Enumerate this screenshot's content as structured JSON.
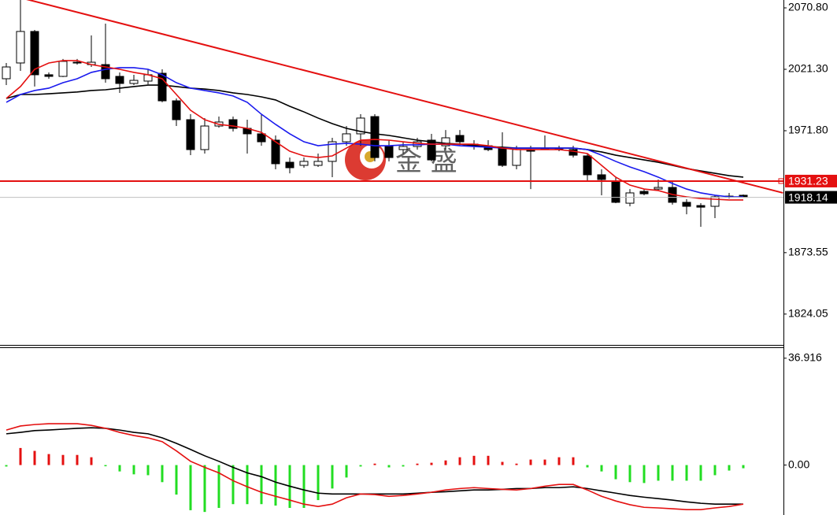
{
  "chart_data": [
    {
      "type": "candlestick",
      "ylim": [
        1799.2,
        2077.15
      ],
      "yticks": [
        {
          "value": 2070.8,
          "label": "2070.80"
        },
        {
          "value": 2021.3,
          "label": "2021.30"
        },
        {
          "value": 1971.8,
          "label": "1971.80"
        },
        1873.55,
        1824.05
      ],
      "open": [
        2013.7,
        2026.4,
        2051.8,
        2016.9,
        2015.6,
        2026.4,
        2025.1,
        2025.1,
        2015.6,
        2009.9,
        2011.8,
        2018.1,
        1995.9,
        1980.7,
        1956.6,
        1975.6,
        1980.7,
        1973.7,
        1969.3,
        1964.2,
        1946.4,
        1943.9,
        1943.9,
        1947.1,
        1962.9,
        1969.3,
        1983.2,
        1959.7,
        1956.6,
        1959.1,
        1964.2,
        1959.7,
        1968.0,
        1961.0,
        1959.7,
        1957.8,
        1943.9,
        1956.6,
        1957.8,
        1957.8,
        1956.6,
        1951.5,
        1936.3,
        1931.2,
        1913.4,
        1922.9,
        1924.8,
        1926.1,
        1914.1,
        1911.5,
        1910.9,
        1918.5,
        1919.8
      ],
      "high": [
        2026.4,
        2077.2,
        2053.0,
        2018.8,
        2029.6,
        2029.6,
        2048.6,
        2058.1,
        2018.8,
        2016.9,
        2021.3,
        2021.3,
        1997.8,
        1985.1,
        1982.0,
        1983.2,
        1983.2,
        1980.7,
        1985.1,
        1968.0,
        1950.2,
        1950.2,
        1953.4,
        1966.1,
        1975.6,
        1985.1,
        1985.1,
        1964.2,
        1962.9,
        1966.1,
        1969.3,
        1972.4,
        1972.4,
        1964.2,
        1964.2,
        1970.5,
        1959.7,
        1959.7,
        1968.0,
        1959.7,
        1959.7,
        1953.4,
        1940.7,
        1934.4,
        1924.8,
        1924.8,
        1932.5,
        1931.2,
        1916.6,
        1913.4,
        1919.8,
        1921.7,
        1920.4
      ],
      "low": [
        2008.6,
        2020.0,
        2007.4,
        2013.7,
        2015.0,
        2025.1,
        2023.2,
        2010.5,
        2002.3,
        2008.6,
        2009.2,
        1994.7,
        1975.6,
        1952.1,
        1953.4,
        1974.3,
        1971.2,
        1953.4,
        1959.7,
        1940.7,
        1937.5,
        1942.0,
        1942.6,
        1934.4,
        1959.7,
        1959.7,
        1947.1,
        1947.1,
        1953.4,
        1956.6,
        1947.1,
        1956.6,
        1959.7,
        1956.6,
        1955.3,
        1942.6,
        1940.7,
        1924.8,
        1956.6,
        1955.3,
        1950.2,
        1931.2,
        1919.8,
        1913.4,
        1910.9,
        1919.8,
        1923.6,
        1912.2,
        1904.5,
        1894.4,
        1901.4,
        1917.2,
        1917.9
      ],
      "close": [
        2023.2,
        2051.8,
        2016.9,
        2015.6,
        2027.7,
        2027.0,
        2027.0,
        2013.7,
        2009.9,
        2012.4,
        2016.9,
        1995.9,
        1980.7,
        1956.6,
        1975.6,
        1978.8,
        1973.7,
        1969.3,
        1962.9,
        1945.2,
        1942.0,
        1947.1,
        1947.1,
        1962.9,
        1969.3,
        1982.0,
        1950.2,
        1950.2,
        1959.1,
        1962.9,
        1948.3,
        1966.1,
        1962.9,
        1959.7,
        1956.6,
        1943.9,
        1956.6,
        1955.3,
        1957.2,
        1957.2,
        1952.1,
        1936.3,
        1932.5,
        1914.1,
        1921.7,
        1921.0,
        1926.1,
        1914.1,
        1910.9,
        1910.2,
        1918.5,
        1919.1,
        1918.14
      ],
      "up_color": "#ffffff",
      "down_color": "#000000",
      "lines": [
        {
          "color": "#000000",
          "values": [
            1997.8,
            2001.0,
            2001.0,
            2001.6,
            2002.3,
            2003.0,
            2004.2,
            2004.8,
            2006.1,
            2007.4,
            2008.6,
            2008.6,
            2007.4,
            2006.1,
            2005.4,
            2004.2,
            2002.3,
            2001.0,
            1999.1,
            1996.6,
            1991.5,
            1987.0,
            1982.0,
            1977.5,
            1973.7,
            1971.2,
            1969.3,
            1968.0,
            1966.1,
            1964.2,
            1962.9,
            1961.6,
            1961.0,
            1959.7,
            1959.1,
            1958.5,
            1957.8,
            1957.8,
            1957.8,
            1957.8,
            1957.8,
            1956.6,
            1954.7,
            1952.1,
            1950.2,
            1948.3,
            1946.4,
            1943.9,
            1941.3,
            1939.4,
            1937.5,
            1935.6,
            1934.4
          ]
        },
        {
          "color": "#1a1aee",
          "values": [
            1994.7,
            2001.0,
            2004.2,
            2006.1,
            2010.5,
            2013.7,
            2018.8,
            2021.3,
            2022.6,
            2022.6,
            2021.3,
            2016.9,
            2010.5,
            2006.1,
            2004.2,
            2002.3,
            1999.8,
            1994.7,
            1985.1,
            1976.9,
            1969.3,
            1962.9,
            1959.7,
            1961.0,
            1961.6,
            1961.0,
            1959.7,
            1959.7,
            1960.4,
            1960.4,
            1961.0,
            1961.0,
            1959.7,
            1959.1,
            1958.5,
            1957.8,
            1957.8,
            1957.8,
            1957.8,
            1957.8,
            1957.8,
            1956.6,
            1952.1,
            1947.1,
            1942.6,
            1938.8,
            1934.4,
            1929.3,
            1924.8,
            1921.7,
            1919.8,
            1918.5,
            1918.5
          ]
        },
        {
          "color": "#e41010",
          "values": [
            1997.8,
            2007.4,
            2021.3,
            2026.4,
            2028.3,
            2028.3,
            2025.1,
            2023.2,
            2021.3,
            2018.8,
            2016.9,
            2013.7,
            2001.0,
            1988.3,
            1980.7,
            1976.9,
            1975.6,
            1973.7,
            1970.5,
            1962.9,
            1955.3,
            1951.5,
            1950.2,
            1951.5,
            1957.8,
            1964.2,
            1964.8,
            1964.2,
            1962.9,
            1961.6,
            1961.0,
            1961.0,
            1961.0,
            1961.0,
            1959.7,
            1957.8,
            1956.6,
            1956.6,
            1956.6,
            1956.6,
            1955.3,
            1953.4,
            1943.9,
            1934.4,
            1928.0,
            1924.8,
            1923.6,
            1920.4,
            1918.5,
            1917.2,
            1916.6,
            1916.0,
            1916.0
          ]
        }
      ],
      "trendline": {
        "color": "#e41010",
        "x": [
          1.2,
          54.8
        ],
        "y": [
          2078.4,
          1921.7
        ]
      },
      "levels": [
        {
          "value": 1931.23,
          "color": "#e41010",
          "label_color": "#e41010"
        },
        {
          "value": 1918.14,
          "color": "#c0c0c0",
          "label_color": "#000000"
        }
      ],
      "watermark": "金 盛"
    },
    {
      "type": "macd",
      "ylim": [
        -17.25,
        40.42
      ],
      "yticks": [
        36.916,
        {
          "value": 0,
          "label": "0.00"
        }
      ],
      "up_color": "#e41010",
      "down_color": "#22dd22",
      "values": [
        -0.5,
        5.9,
        4.9,
        3.8,
        3.5,
        3.5,
        2.7,
        -0.3,
        -2.2,
        -3.2,
        -3.5,
        -5.9,
        -10.2,
        -15.6,
        -16.2,
        -14.8,
        -13.5,
        -13.5,
        -13.5,
        -14.0,
        -14.8,
        -14.8,
        -12.1,
        -8.1,
        -4.3,
        -0.5,
        0.5,
        -0.8,
        -0.5,
        0.5,
        0.8,
        1.6,
        2.7,
        3.2,
        3.2,
        1.1,
        0.5,
        1.9,
        1.9,
        2.7,
        2.7,
        -0.8,
        -2.2,
        -4.9,
        -5.9,
        -6.2,
        -5.4,
        -5.4,
        -5.4,
        -5.4,
        -3.5,
        -1.9,
        -1.1
      ],
      "lines": [
        {
          "color": "#000000",
          "values": [
            10.8,
            11.3,
            11.9,
            12.1,
            12.4,
            12.7,
            12.9,
            12.7,
            12.1,
            11.3,
            10.8,
            9.4,
            7.5,
            5.4,
            3.2,
            1.3,
            -0.8,
            -2.7,
            -4.0,
            -5.9,
            -7.3,
            -8.6,
            -9.7,
            -10.0,
            -10.0,
            -10.0,
            -10.0,
            -10.0,
            -10.0,
            -9.7,
            -9.4,
            -9.2,
            -8.9,
            -8.6,
            -8.6,
            -8.4,
            -8.1,
            -8.1,
            -7.8,
            -7.8,
            -7.5,
            -8.1,
            -8.9,
            -9.7,
            -10.5,
            -11.1,
            -11.6,
            -12.1,
            -12.7,
            -13.2,
            -13.5,
            -13.5,
            -13.5
          ]
        },
        {
          "color": "#e41010",
          "values": [
            12.1,
            13.5,
            14.0,
            14.3,
            14.3,
            14.3,
            13.7,
            12.7,
            11.3,
            10.2,
            9.4,
            8.1,
            4.9,
            1.3,
            -0.8,
            -2.7,
            -5.4,
            -7.5,
            -9.4,
            -10.8,
            -12.1,
            -13.5,
            -14.3,
            -13.5,
            -11.3,
            -10.0,
            -10.2,
            -10.8,
            -10.5,
            -10.0,
            -9.4,
            -8.6,
            -8.1,
            -7.8,
            -8.1,
            -8.4,
            -8.6,
            -8.1,
            -7.3,
            -6.7,
            -6.7,
            -8.6,
            -10.8,
            -12.4,
            -13.7,
            -14.6,
            -14.8,
            -15.1,
            -15.4,
            -15.4,
            -14.8,
            -14.3,
            -13.5
          ]
        }
      ]
    }
  ]
}
